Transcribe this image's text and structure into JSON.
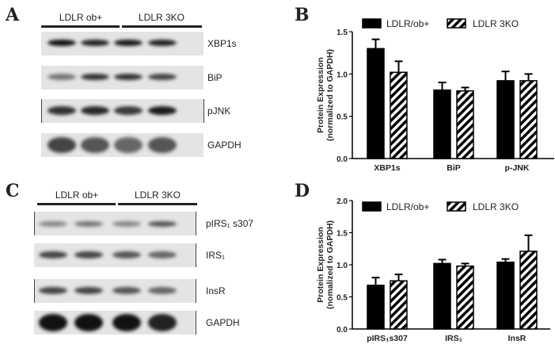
{
  "panels": {
    "A": {
      "letter": "A",
      "groups": [
        "LDLR ob+",
        "LDLR 3KO"
      ],
      "blots": [
        "XBP1s",
        "BiP",
        "pJNK",
        "GAPDH"
      ]
    },
    "C": {
      "letter": "C",
      "groups": [
        "LDLR ob+",
        "LDLR 3KO"
      ],
      "blots": [
        "pIRS₁ s307",
        "IRS₁",
        "InsR",
        "GAPDH"
      ]
    }
  },
  "chart_data": [
    {
      "panel": "B",
      "type": "bar",
      "ylabel": "Protein Expression (normalized to GAPDH)",
      "ylabel_lines": [
        "Protein Expression",
        "(normalized to GAPDH)"
      ],
      "ylim": [
        0,
        1.5
      ],
      "yticks": [
        "0.0",
        "0.5",
        "1.0",
        "1.5"
      ],
      "categories": [
        "XBP1s",
        "BiP",
        "p-JNK"
      ],
      "legend_position": "top",
      "series": [
        {
          "name": "LDLR/ob+",
          "pattern": "solid",
          "color": "#000000",
          "values": [
            1.3,
            0.81,
            0.92
          ],
          "errors": [
            0.11,
            0.09,
            0.11
          ]
        },
        {
          "name": "LDLR 3KO",
          "pattern": "hatched",
          "color": "#000000",
          "values": [
            1.02,
            0.8,
            0.92
          ],
          "errors": [
            0.13,
            0.04,
            0.08
          ]
        }
      ]
    },
    {
      "panel": "D",
      "type": "bar",
      "ylabel": "Protein Expression (nomalized to GAPDH)",
      "ylabel_lines": [
        "Protein Expression",
        "(nomalized to GAPDH)"
      ],
      "ylim": [
        0,
        2.0
      ],
      "yticks": [
        "0.0",
        "0.5",
        "1.0",
        "1.5",
        "2.0"
      ],
      "categories": [
        "pIRS₁s307",
        "IRS₁",
        "InsR"
      ],
      "legend_position": "top",
      "series": [
        {
          "name": "LDLR/ob+",
          "pattern": "solid",
          "color": "#000000",
          "values": [
            0.68,
            1.02,
            1.04
          ],
          "errors": [
            0.12,
            0.06,
            0.05
          ]
        },
        {
          "name": "LDLR 3KO",
          "pattern": "hatched",
          "color": "#000000",
          "values": [
            0.75,
            0.98,
            1.21
          ],
          "errors": [
            0.1,
            0.04,
            0.25
          ]
        }
      ]
    }
  ]
}
